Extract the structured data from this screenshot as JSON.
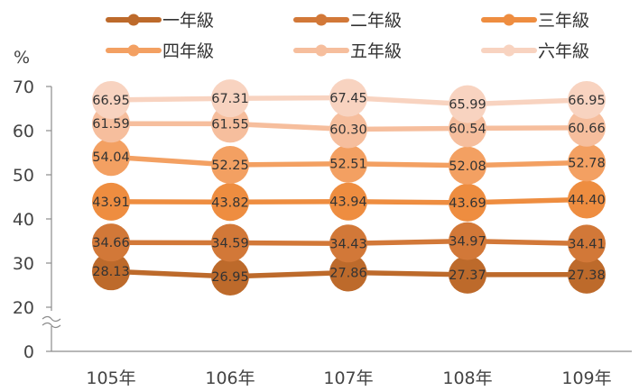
{
  "chart_data": {
    "type": "line",
    "unit_label": "%",
    "categories": [
      "105年",
      "106年",
      "107年",
      "108年",
      "109年"
    ],
    "yticks": [
      "0",
      "20",
      "30",
      "40",
      "50",
      "60",
      "70"
    ],
    "axis_break": true,
    "ylim": [
      20,
      70
    ],
    "grid": false,
    "legend_position": "top",
    "series": [
      {
        "name": "一年級",
        "color": "#BD6A2B",
        "values": [
          28.13,
          26.95,
          27.86,
          27.37,
          27.38
        ]
      },
      {
        "name": "二年級",
        "color": "#D27838",
        "values": [
          34.66,
          34.59,
          34.43,
          34.97,
          34.41
        ]
      },
      {
        "name": "三年級",
        "color": "#EE8D40",
        "values": [
          43.91,
          43.82,
          43.94,
          43.69,
          44.4
        ]
      },
      {
        "name": "四年級",
        "color": "#F3A062",
        "values": [
          54.04,
          52.25,
          52.51,
          52.08,
          52.78
        ]
      },
      {
        "name": "五年級",
        "color": "#F6BE9D",
        "values": [
          61.59,
          61.55,
          60.3,
          60.54,
          60.66
        ]
      },
      {
        "name": "六年級",
        "color": "#F8D3C0",
        "values": [
          66.95,
          67.31,
          67.45,
          65.99,
          66.95
        ]
      }
    ]
  }
}
